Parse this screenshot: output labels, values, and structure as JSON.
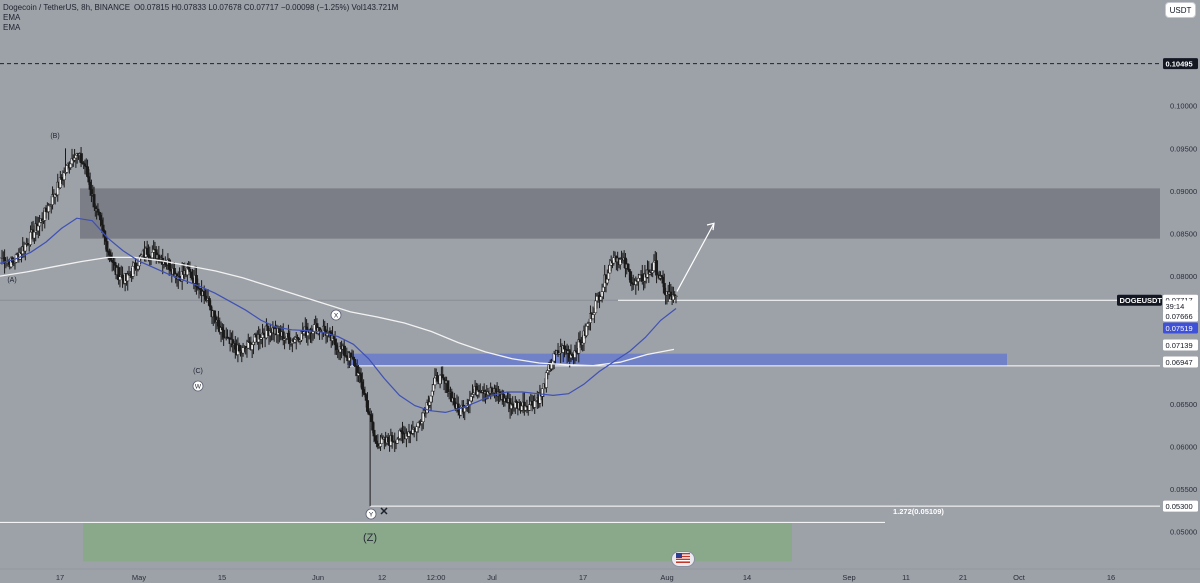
{
  "header": {
    "title": "Dogecoin / TetherUS, 8h, BINANCE",
    "ohlc": "O0.07815 H0.07833 L0.07678 C0.07717 −0.00098 (−1.25%) Vol143.721M",
    "indicators": [
      "EMA",
      "EMA"
    ]
  },
  "currency_button": "USDT",
  "colors": {
    "background": "#9da1a8",
    "resistance_zone": "#7b7e86",
    "support_zone": "#6f80c9",
    "target_zone": "#8aa98a",
    "ema_fast": "#3f51b5",
    "ema_slow": "#f2f2f2",
    "candles": "#1a1a1a"
  },
  "chart_data": {
    "type": "candlestick",
    "symbol": "DOGEUSDT",
    "timeframe": "8h",
    "x_tick_labels": [
      "17",
      "May",
      "15",
      "Jun",
      "12",
      "12:00",
      "Jul",
      "17",
      "Aug",
      "14",
      "Sep",
      "11",
      "21",
      "Oct",
      "16"
    ],
    "y_tick_labels": [
      "0.10000",
      "0.09500",
      "0.09000",
      "0.08500",
      "0.08000",
      "0.06500",
      "0.06000",
      "0.05500",
      "0.05000"
    ],
    "ylim": [
      0.0465,
      0.113
    ],
    "price_labels": [
      {
        "text": "0.10495",
        "value": 0.10495,
        "style": "dark"
      },
      {
        "text": "DOGEUSDT",
        "value": 0.07717,
        "style": "dark"
      },
      {
        "text": "0.07717",
        "value": 0.07717,
        "style": "light"
      },
      {
        "text": "39:14",
        "value": 0.07717,
        "style": "sub"
      },
      {
        "text": "0.07666",
        "value": 0.07666,
        "style": "light"
      },
      {
        "text": "0.07519",
        "value": 0.07519,
        "style": "blue"
      },
      {
        "text": "0.07139",
        "value": 0.07139,
        "style": "light"
      },
      {
        "text": "0.06947",
        "value": 0.06947,
        "style": "light"
      },
      {
        "text": "0.05300",
        "value": 0.053,
        "style": "light"
      }
    ],
    "fib_label": "1.272(0.05109)",
    "wave_labels": [
      "(B)",
      "(A)",
      "(C)",
      "W",
      "X",
      "Y",
      "(Z)"
    ],
    "close_series": [
      0.0822,
      0.0815,
      0.0832,
      0.085,
      0.087,
      0.0895,
      0.092,
      0.0945,
      0.093,
      0.088,
      0.084,
      0.0805,
      0.0795,
      0.0815,
      0.083,
      0.0825,
      0.0815,
      0.08,
      0.0805,
      0.079,
      0.0765,
      0.0735,
      0.072,
      0.071,
      0.072,
      0.0732,
      0.0738,
      0.073,
      0.0725,
      0.0733,
      0.074,
      0.0738,
      0.0722,
      0.071,
      0.0698,
      0.066,
      0.0605,
      0.0605,
      0.061,
      0.0616,
      0.0622,
      0.065,
      0.0682,
      0.067,
      0.064,
      0.0655,
      0.067,
      0.0665,
      0.066,
      0.065,
      0.0648,
      0.065,
      0.066,
      0.07,
      0.0715,
      0.0708,
      0.0725,
      0.076,
      0.079,
      0.0825,
      0.0815,
      0.079,
      0.08,
      0.0812,
      0.078,
      0.0772
    ],
    "ema_fast": [
      0.0815,
      0.082,
      0.0828,
      0.084,
      0.0856,
      0.0868,
      0.0865,
      0.0845,
      0.083,
      0.0818,
      0.081,
      0.0802,
      0.0795,
      0.0788,
      0.078,
      0.077,
      0.076,
      0.0748,
      0.074,
      0.0737,
      0.0736,
      0.0734,
      0.0729,
      0.072,
      0.0703,
      0.068,
      0.066,
      0.0648,
      0.0642,
      0.064,
      0.0645,
      0.0652,
      0.066,
      0.0664,
      0.0664,
      0.0662,
      0.066,
      0.0662,
      0.0673,
      0.0688,
      0.07,
      0.0712,
      0.0728,
      0.0748,
      0.0762
    ],
    "ema_slow": [
      0.08,
      0.0805,
      0.0811,
      0.0817,
      0.0822,
      0.0822,
      0.0818,
      0.0812,
      0.0806,
      0.0798,
      0.0788,
      0.0778,
      0.0768,
      0.0758,
      0.0752,
      0.0745,
      0.0735,
      0.0722,
      0.0711,
      0.0703,
      0.0698,
      0.0696,
      0.0695,
      0.0699,
      0.0708,
      0.0714
    ],
    "zones": [
      {
        "name": "resistance",
        "low": 0.0844,
        "high": 0.0903
      },
      {
        "name": "support",
        "low": 0.0694,
        "high": 0.0709
      },
      {
        "name": "target",
        "low": 0.0465,
        "high": 0.051
      }
    ],
    "levels": [
      {
        "name": "previous high",
        "value": 0.10495,
        "style": "dashed"
      },
      {
        "name": "last price",
        "value": 0.07717
      },
      {
        "name": "support line",
        "value": 0.06947
      },
      {
        "name": "wave low line",
        "value": 0.053
      },
      {
        "name": "fib extension",
        "value": 0.05109
      }
    ],
    "grid": false
  }
}
